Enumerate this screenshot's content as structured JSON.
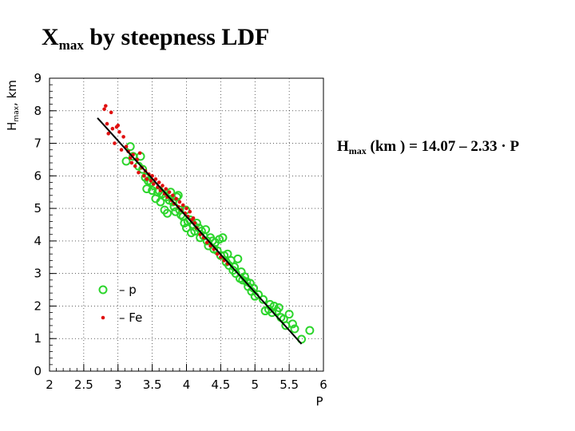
{
  "title": {
    "main": "X",
    "sub": "max",
    "rest": " by steepness LDF"
  },
  "formula": {
    "h": "H",
    "sub": "max",
    "rest": " (km ) = 14.07 – 2.33 · P"
  },
  "chart_data": {
    "type": "scatter",
    "xlabel": "P",
    "ylabel": {
      "main": "H",
      "sub": "max",
      "rest": ", km"
    },
    "xlim": [
      2,
      6
    ],
    "ylim": [
      0,
      9
    ],
    "xticks": [
      "2",
      "2.5",
      "3",
      "3.5",
      "4",
      "4.5",
      "5",
      "5.5",
      "6"
    ],
    "yticks": [
      "0",
      "1",
      "2",
      "3",
      "4",
      "5",
      "6",
      "7",
      "8",
      "9"
    ],
    "grid": true,
    "legend": {
      "placement": "bottom-left",
      "entries": [
        "– p",
        "– Fe"
      ]
    },
    "fit_line": {
      "intercept": 14.07,
      "slope": -2.33,
      "x_range": [
        2.7,
        5.68
      ],
      "color": "#000000"
    },
    "series": [
      {
        "name": "p",
        "marker": "open-circle",
        "color": "#2cd52c",
        "points": [
          [
            3.12,
            6.45
          ],
          [
            3.18,
            6.9
          ],
          [
            3.22,
            6.6
          ],
          [
            3.3,
            6.3
          ],
          [
            3.33,
            6.6
          ],
          [
            3.36,
            6.2
          ],
          [
            3.4,
            5.95
          ],
          [
            3.42,
            5.6
          ],
          [
            3.44,
            5.85
          ],
          [
            3.48,
            5.8
          ],
          [
            3.5,
            5.55
          ],
          [
            3.52,
            5.7
          ],
          [
            3.55,
            5.3
          ],
          [
            3.58,
            5.5
          ],
          [
            3.6,
            5.55
          ],
          [
            3.62,
            5.2
          ],
          [
            3.65,
            5.45
          ],
          [
            3.68,
            4.95
          ],
          [
            3.7,
            5.35
          ],
          [
            3.72,
            4.85
          ],
          [
            3.75,
            5.25
          ],
          [
            3.77,
            5.5
          ],
          [
            3.8,
            5.2
          ],
          [
            3.82,
            5.05
          ],
          [
            3.84,
            4.9
          ],
          [
            3.86,
            5.35
          ],
          [
            3.88,
            5.4
          ],
          [
            3.9,
            4.95
          ],
          [
            3.92,
            4.8
          ],
          [
            3.95,
            4.75
          ],
          [
            3.97,
            4.55
          ],
          [
            3.99,
            4.95
          ],
          [
            4.0,
            4.4
          ],
          [
            4.02,
            4.6
          ],
          [
            4.05,
            4.65
          ],
          [
            4.07,
            4.25
          ],
          [
            4.1,
            4.5
          ],
          [
            4.12,
            4.3
          ],
          [
            4.15,
            4.55
          ],
          [
            4.18,
            4.4
          ],
          [
            4.2,
            4.1
          ],
          [
            4.22,
            4.3
          ],
          [
            4.25,
            4.15
          ],
          [
            4.28,
            4.35
          ],
          [
            4.3,
            4.0
          ],
          [
            4.32,
            3.85
          ],
          [
            4.35,
            4.1
          ],
          [
            4.38,
            4.0
          ],
          [
            4.4,
            3.75
          ],
          [
            4.42,
            3.95
          ],
          [
            4.45,
            3.7
          ],
          [
            4.48,
            4.05
          ],
          [
            4.5,
            3.55
          ],
          [
            4.53,
            4.1
          ],
          [
            4.55,
            3.55
          ],
          [
            4.58,
            3.35
          ],
          [
            4.6,
            3.6
          ],
          [
            4.62,
            3.25
          ],
          [
            4.65,
            3.4
          ],
          [
            4.68,
            3.1
          ],
          [
            4.7,
            3.2
          ],
          [
            4.72,
            3.0
          ],
          [
            4.75,
            3.45
          ],
          [
            4.78,
            2.85
          ],
          [
            4.8,
            3.05
          ],
          [
            4.82,
            2.8
          ],
          [
            4.85,
            2.9
          ],
          [
            4.88,
            2.75
          ],
          [
            4.9,
            2.6
          ],
          [
            4.93,
            2.7
          ],
          [
            4.95,
            2.45
          ],
          [
            4.98,
            2.55
          ],
          [
            5.0,
            2.3
          ],
          [
            5.05,
            2.35
          ],
          [
            5.12,
            2.2
          ],
          [
            5.15,
            1.85
          ],
          [
            5.2,
            1.9
          ],
          [
            5.22,
            2.05
          ],
          [
            5.25,
            1.8
          ],
          [
            5.28,
            2.0
          ],
          [
            5.32,
            1.85
          ],
          [
            5.35,
            1.95
          ],
          [
            5.38,
            1.65
          ],
          [
            5.42,
            1.6
          ],
          [
            5.45,
            1.4
          ],
          [
            5.5,
            1.75
          ],
          [
            5.55,
            1.45
          ],
          [
            5.58,
            1.3
          ],
          [
            5.68,
            0.98
          ],
          [
            5.8,
            1.25
          ]
        ]
      },
      {
        "name": "Fe",
        "marker": "dot",
        "color": "#e01010",
        "points": [
          [
            2.8,
            8.05
          ],
          [
            2.82,
            8.15
          ],
          [
            2.84,
            7.6
          ],
          [
            2.86,
            7.3
          ],
          [
            2.9,
            7.95
          ],
          [
            2.92,
            7.45
          ],
          [
            2.95,
            7.0
          ],
          [
            2.98,
            7.5
          ],
          [
            3.0,
            7.55
          ],
          [
            3.02,
            7.35
          ],
          [
            3.05,
            6.8
          ],
          [
            3.08,
            7.2
          ],
          [
            3.12,
            6.9
          ],
          [
            3.15,
            6.75
          ],
          [
            3.18,
            6.55
          ],
          [
            3.2,
            6.4
          ],
          [
            3.22,
            6.65
          ],
          [
            3.25,
            6.3
          ],
          [
            3.28,
            6.5
          ],
          [
            3.3,
            6.1
          ],
          [
            3.32,
            6.7
          ],
          [
            3.35,
            6.25
          ],
          [
            3.38,
            6.0
          ],
          [
            3.4,
            6.15
          ],
          [
            3.42,
            5.9
          ],
          [
            3.45,
            6.05
          ],
          [
            3.48,
            5.85
          ],
          [
            3.5,
            6.0
          ],
          [
            3.52,
            5.75
          ],
          [
            3.55,
            5.9
          ],
          [
            3.58,
            5.65
          ],
          [
            3.6,
            5.8
          ],
          [
            3.62,
            5.55
          ],
          [
            3.65,
            5.7
          ],
          [
            3.68,
            5.45
          ],
          [
            3.7,
            5.6
          ],
          [
            3.72,
            5.35
          ],
          [
            3.75,
            5.5
          ],
          [
            3.78,
            5.25
          ],
          [
            3.8,
            5.4
          ],
          [
            3.82,
            5.15
          ],
          [
            3.85,
            5.3
          ],
          [
            3.88,
            5.05
          ],
          [
            3.9,
            5.2
          ],
          [
            3.92,
            4.95
          ],
          [
            3.95,
            5.1
          ],
          [
            3.98,
            4.85
          ],
          [
            4.0,
            5.0
          ],
          [
            4.02,
            4.75
          ],
          [
            4.05,
            4.9
          ],
          [
            4.08,
            4.65
          ],
          [
            4.1,
            4.7
          ],
          [
            4.12,
            4.55
          ],
          [
            4.15,
            4.4
          ],
          [
            4.2,
            4.2
          ],
          [
            4.25,
            4.1
          ],
          [
            4.3,
            3.95
          ],
          [
            4.35,
            3.85
          ],
          [
            4.4,
            3.75
          ],
          [
            4.45,
            3.6
          ],
          [
            4.5,
            3.5
          ],
          [
            4.55,
            3.4
          ],
          [
            4.6,
            3.3
          ]
        ]
      }
    ]
  }
}
